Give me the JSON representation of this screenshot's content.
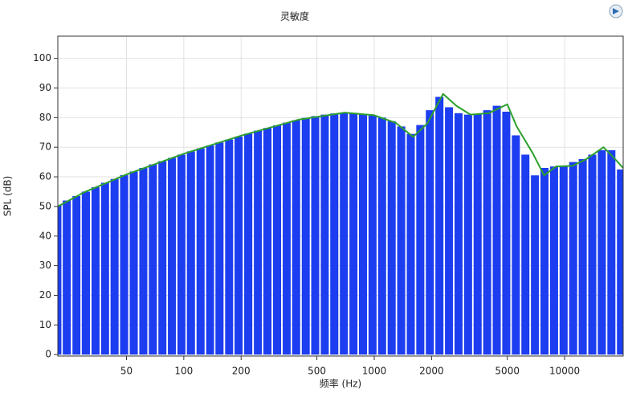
{
  "chart_data": {
    "type": "bar",
    "title": "灵敏度",
    "xlabel": "频率 (Hz)",
    "ylabel": "SPL (dB)",
    "xscale": "log",
    "grid": true,
    "xlim": [
      21.8,
      20300
    ],
    "ylim": [
      -0.5,
      107.5
    ],
    "xticks": [
      50,
      100,
      200,
      500,
      1000,
      2000,
      5000,
      10000
    ],
    "yticks": [
      0,
      10,
      20,
      30,
      40,
      50,
      60,
      70,
      80,
      90,
      100
    ],
    "bar_color": "#1c3df0",
    "line_color": "#2ca02c",
    "x": [
      21.7,
      24.3,
      27.3,
      30.6,
      34.4,
      38.6,
      43.3,
      48.6,
      54.6,
      61.3,
      68.8,
      77.2,
      86.6,
      97.2,
      109,
      122.5,
      137.5,
      154,
      173,
      194,
      218,
      245,
      275,
      309,
      347,
      389,
      437,
      490,
      550,
      617,
      693,
      778,
      873,
      980,
      1100,
      1235,
      1386,
      1556,
      1746,
      1960,
      2200,
      2470,
      2772,
      3111,
      3492,
      3920,
      4400,
      4938,
      5543,
      6222,
      6984,
      7840,
      8800,
      9877,
      11087,
      12445,
      13969,
      15680,
      17600,
      19755
    ],
    "values": [
      50.5,
      52,
      53.5,
      55,
      56.5,
      58,
      59.3,
      60.6,
      61.8,
      63,
      64.2,
      65.3,
      66.4,
      67.5,
      68.6,
      69.6,
      70.6,
      71.6,
      72.6,
      73.6,
      74.6,
      75.6,
      76.5,
      77.4,
      78.3,
      79.1,
      79.9,
      80.5,
      81,
      81.4,
      81.6,
      81.6,
      81.3,
      80.8,
      80,
      78.8,
      77,
      74.5,
      77.5,
      82.5,
      87,
      83.5,
      81.5,
      81,
      81.3,
      82.5,
      84,
      82,
      74,
      67.5,
      60.5,
      63,
      63.5,
      63.5,
      65,
      66,
      67.5,
      69,
      69,
      62.5
    ],
    "line": {
      "x": [
        21.8,
        30,
        50,
        100,
        200,
        400,
        700,
        1000,
        1300,
        1600,
        1900,
        2300,
        2700,
        3200,
        4000,
        5000,
        5600,
        6800,
        7800,
        9000,
        11000,
        13000,
        16000,
        17500,
        20300
      ],
      "values": [
        50,
        54.8,
        60.8,
        67.8,
        73.9,
        79.3,
        81.7,
        80.8,
        78.2,
        73.5,
        78,
        88,
        84,
        81,
        81.5,
        84.5,
        77,
        68,
        60.5,
        63.5,
        63.7,
        66,
        70,
        67.5,
        63
      ]
    }
  }
}
